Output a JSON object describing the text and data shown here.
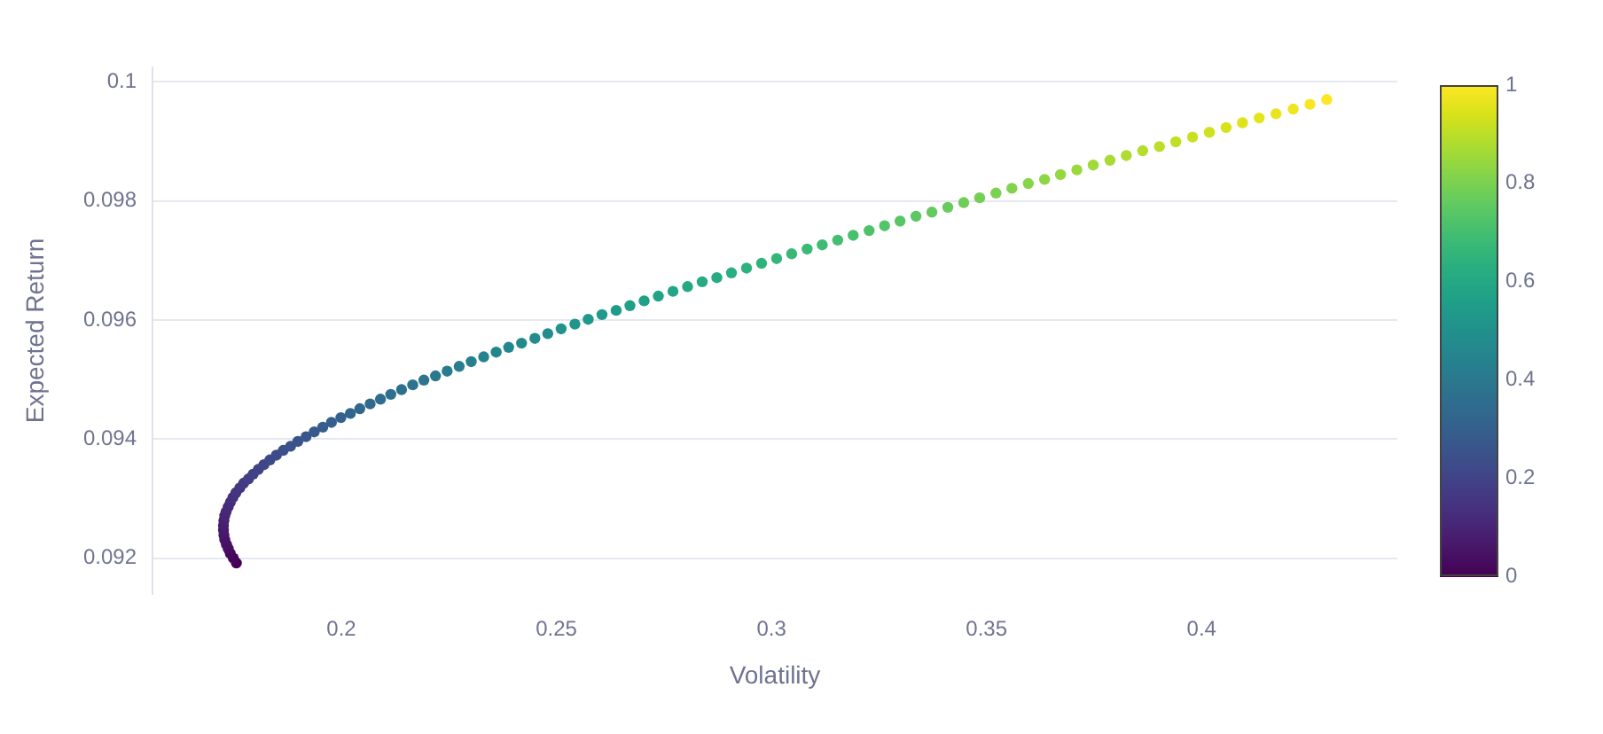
{
  "chart_data": {
    "type": "scatter",
    "xlabel": "Volatility",
    "ylabel": "Expected Return",
    "x": [
      0.1756,
      0.1749,
      0.1742,
      0.1737,
      0.1733,
      0.1729,
      0.1727,
      0.1726,
      0.1726,
      0.1727,
      0.1729,
      0.1732,
      0.1737,
      0.1742,
      0.1748,
      0.1755,
      0.1764,
      0.1773,
      0.1784,
      0.1795,
      0.1807,
      0.182,
      0.1834,
      0.1849,
      0.1865,
      0.1882,
      0.1899,
      0.1918,
      0.1937,
      0.1957,
      0.1977,
      0.1999,
      0.2021,
      0.2043,
      0.2067,
      0.2091,
      0.2115,
      0.214,
      0.2166,
      0.2192,
      0.2219,
      0.2246,
      0.2274,
      0.2302,
      0.2331,
      0.236,
      0.2389,
      0.2419,
      0.245,
      0.248,
      0.2511,
      0.2543,
      0.2574,
      0.2606,
      0.2639,
      0.2671,
      0.2704,
      0.2737,
      0.2771,
      0.2805,
      0.2839,
      0.2873,
      0.2907,
      0.2942,
      0.2977,
      0.3012,
      0.3047,
      0.3083,
      0.3118,
      0.3154,
      0.319,
      0.3227,
      0.3263,
      0.3299,
      0.3336,
      0.3373,
      0.341,
      0.3447,
      0.3484,
      0.3522,
      0.3559,
      0.3597,
      0.3635,
      0.3672,
      0.371,
      0.3748,
      0.3787,
      0.3825,
      0.3863,
      0.3902,
      0.394,
      0.3979,
      0.4018,
      0.4057,
      0.4095,
      0.4134,
      0.4173,
      0.4213,
      0.4252,
      0.4291
    ],
    "values": [
      0.09192,
      0.092,
      0.09208,
      0.09216,
      0.09223,
      0.09231,
      0.09239,
      0.09247,
      0.09255,
      0.09263,
      0.09271,
      0.09278,
      0.09286,
      0.09294,
      0.09302,
      0.0931,
      0.09318,
      0.09326,
      0.09333,
      0.09341,
      0.09349,
      0.09357,
      0.09365,
      0.09373,
      0.09381,
      0.09388,
      0.09396,
      0.09404,
      0.09412,
      0.0942,
      0.09428,
      0.09436,
      0.09443,
      0.09451,
      0.09459,
      0.09467,
      0.09475,
      0.09483,
      0.09491,
      0.09499,
      0.09506,
      0.09514,
      0.09522,
      0.0953,
      0.09538,
      0.09546,
      0.09554,
      0.09561,
      0.09569,
      0.09577,
      0.09585,
      0.09593,
      0.09601,
      0.09609,
      0.09616,
      0.09624,
      0.09632,
      0.0964,
      0.09648,
      0.09656,
      0.09664,
      0.09671,
      0.09679,
      0.09687,
      0.09695,
      0.09703,
      0.09711,
      0.09719,
      0.09726,
      0.09734,
      0.09742,
      0.0975,
      0.09758,
      0.09766,
      0.09774,
      0.09781,
      0.09789,
      0.09797,
      0.09805,
      0.09813,
      0.09821,
      0.09829,
      0.09836,
      0.09844,
      0.09852,
      0.0986,
      0.09868,
      0.09876,
      0.09884,
      0.09891,
      0.09899,
      0.09907,
      0.09915,
      0.09923,
      0.09931,
      0.09939,
      0.09946,
      0.09954,
      0.09962,
      0.0997
    ],
    "cvalues": [
      0,
      0.01,
      0.02,
      0.03,
      0.04,
      0.05,
      0.06,
      0.07,
      0.08,
      0.09,
      0.1,
      0.11,
      0.12,
      0.13,
      0.14,
      0.15,
      0.16,
      0.17,
      0.18,
      0.19,
      0.2,
      0.21,
      0.22,
      0.23,
      0.24,
      0.25,
      0.26,
      0.27,
      0.28,
      0.29,
      0.3,
      0.31,
      0.32,
      0.33,
      0.34,
      0.35,
      0.36,
      0.37,
      0.38,
      0.39,
      0.4,
      0.41,
      0.42,
      0.43,
      0.44,
      0.45,
      0.46,
      0.47,
      0.48,
      0.49,
      0.51,
      0.52,
      0.53,
      0.54,
      0.55,
      0.56,
      0.57,
      0.58,
      0.59,
      0.6,
      0.61,
      0.62,
      0.63,
      0.64,
      0.65,
      0.66,
      0.67,
      0.68,
      0.69,
      0.7,
      0.71,
      0.72,
      0.73,
      0.74,
      0.75,
      0.76,
      0.77,
      0.78,
      0.79,
      0.8,
      0.81,
      0.82,
      0.83,
      0.84,
      0.85,
      0.86,
      0.87,
      0.88,
      0.89,
      0.9,
      0.91,
      0.92,
      0.93,
      0.94,
      0.95,
      0.96,
      0.97,
      0.98,
      0.99,
      1
    ],
    "clim": [
      0,
      1
    ],
    "cticks": [
      0,
      0.2,
      0.4,
      0.6,
      0.8,
      1
    ],
    "xlim": [
      0.1561,
      0.4455
    ],
    "ylim": [
      0.0914,
      0.10024
    ],
    "xticks": [
      0.2,
      0.25,
      0.3,
      0.35,
      0.4
    ],
    "yticks": [
      0.092,
      0.094,
      0.096,
      0.098,
      0.1
    ],
    "grid": "y",
    "marker": "circle"
  }
}
